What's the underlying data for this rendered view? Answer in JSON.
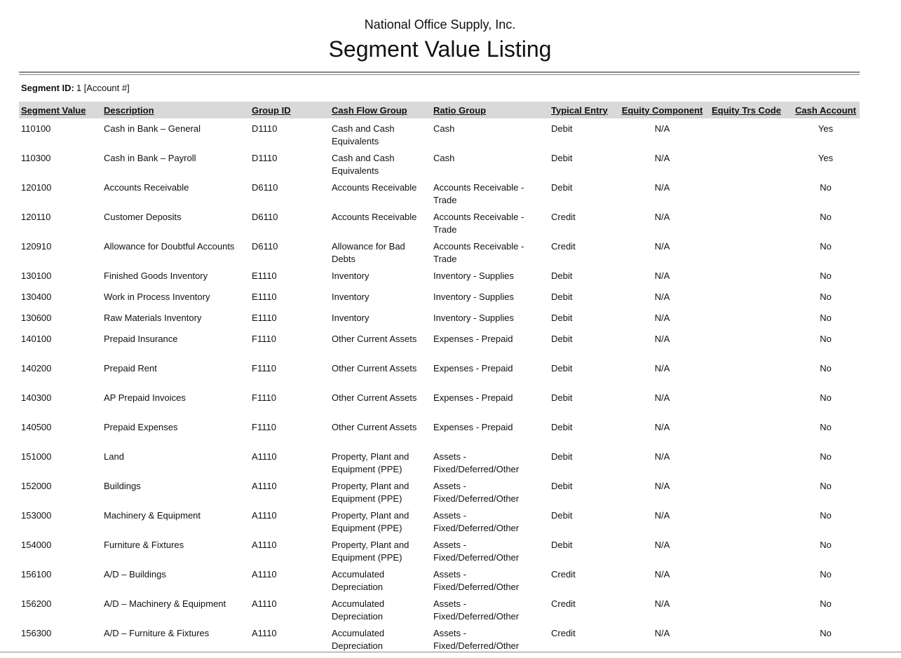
{
  "header": {
    "company": "National Office Supply, Inc.",
    "title": "Segment Value Listing"
  },
  "segment": {
    "label": "Segment ID:",
    "value": "1 [Account #]"
  },
  "table": {
    "columns": [
      "Segment Value",
      "Description",
      "Group ID",
      "Cash Flow Group",
      "Ratio Group",
      "Typical Entry",
      "Equity Component",
      "Equity Trs Code",
      "Cash Account"
    ],
    "rows": [
      [
        "110100",
        "Cash in Bank – General",
        "D1110",
        "Cash and Cash Equivalents",
        "Cash",
        "Debit",
        "N/A",
        "",
        "Yes"
      ],
      [
        "110300",
        "Cash in Bank – Payroll",
        "D1110",
        "Cash and Cash Equivalents",
        "Cash",
        "Debit",
        "N/A",
        "",
        "Yes"
      ],
      [
        "120100",
        "Accounts Receivable",
        "D6110",
        "Accounts Receivable",
        "Accounts Receivable - Trade",
        "Debit",
        "N/A",
        "",
        "No"
      ],
      [
        "120110",
        "Customer Deposits",
        "D6110",
        "Accounts Receivable",
        "Accounts Receivable - Trade",
        "Credit",
        "N/A",
        "",
        "No"
      ],
      [
        "120910",
        "Allowance for Doubtful Accounts",
        "D6110",
        "Allowance for Bad Debts",
        "Accounts Receivable - Trade",
        "Credit",
        "N/A",
        "",
        "No"
      ],
      [
        "130100",
        "Finished Goods Inventory",
        "E1110",
        "Inventory",
        "Inventory - Supplies",
        "Debit",
        "N/A",
        "",
        "No"
      ],
      [
        "130400",
        "Work in Process Inventory",
        "E1110",
        "Inventory",
        "Inventory - Supplies",
        "Debit",
        "N/A",
        "",
        "No"
      ],
      [
        "130600",
        "Raw Materials Inventory",
        "E1110",
        "Inventory",
        "Inventory - Supplies",
        "Debit",
        "N/A",
        "",
        "No"
      ],
      [
        "140100",
        "Prepaid Insurance",
        "F1110",
        "Other Current Assets",
        "Expenses - Prepaid",
        "Debit",
        "N/A",
        "",
        "No"
      ],
      [
        "140200",
        "Prepaid Rent",
        "F1110",
        "Other Current Assets",
        "Expenses - Prepaid",
        "Debit",
        "N/A",
        "",
        "No"
      ],
      [
        "140300",
        "AP Prepaid Invoices",
        "F1110",
        "Other Current Assets",
        "Expenses - Prepaid",
        "Debit",
        "N/A",
        "",
        "No"
      ],
      [
        "140500",
        "Prepaid Expenses",
        "F1110",
        "Other Current Assets",
        "Expenses - Prepaid",
        "Debit",
        "N/A",
        "",
        "No"
      ],
      [
        "151000",
        "Land",
        "A1110",
        "Property, Plant and Equipment (PPE)",
        "Assets - Fixed/Deferred/Other",
        "Debit",
        "N/A",
        "",
        "No"
      ],
      [
        "152000",
        "Buildings",
        "A1110",
        "Property, Plant and Equipment (PPE)",
        "Assets - Fixed/Deferred/Other",
        "Debit",
        "N/A",
        "",
        "No"
      ],
      [
        "153000",
        "Machinery & Equipment",
        "A1110",
        "Property, Plant and Equipment (PPE)",
        "Assets - Fixed/Deferred/Other",
        "Debit",
        "N/A",
        "",
        "No"
      ],
      [
        "154000",
        "Furniture & Fixtures",
        "A1110",
        "Property, Plant and Equipment (PPE)",
        "Assets - Fixed/Deferred/Other",
        "Debit",
        "N/A",
        "",
        "No"
      ],
      [
        "156100",
        "A/D – Buildings",
        "A1110",
        "Accumulated Depreciation",
        "Assets - Fixed/Deferred/Other",
        "Credit",
        "N/A",
        "",
        "No"
      ],
      [
        "156200",
        "A/D – Machinery & Equipment",
        "A1110",
        "Accumulated Depreciation",
        "Assets - Fixed/Deferred/Other",
        "Credit",
        "N/A",
        "",
        "No"
      ],
      [
        "156300",
        "A/D – Furniture & Fixtures",
        "A1110",
        "Accumulated Depreciation",
        "Assets - Fixed/Deferred/Other",
        "Credit",
        "N/A",
        "",
        "No"
      ]
    ]
  }
}
